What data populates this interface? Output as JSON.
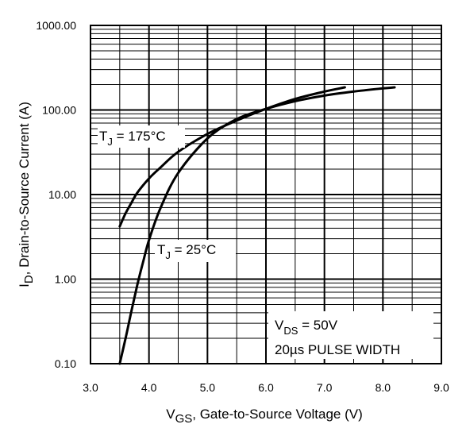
{
  "chart_data": {
    "type": "line",
    "title": "",
    "xlabel": {
      "main": "V",
      "sub": "GS",
      "rest": ", Gate-to-Source Voltage (V)"
    },
    "ylabel": {
      "main": "I",
      "sub": "D",
      "rest": ", Drain-to-Source Current  (A)"
    },
    "xlim": [
      3.0,
      9.0
    ],
    "ylim": [
      0.1,
      1000
    ],
    "y_scale": "log",
    "x_ticks": [
      "3.0",
      "4.0",
      "5.0",
      "6.0",
      "7.0",
      "8.0",
      "9.0"
    ],
    "y_ticks": [
      "0.10",
      "1.00",
      "10.00",
      "100.00",
      "1000.00"
    ],
    "grid": true,
    "series": [
      {
        "name": "TJ = 175°C",
        "x": [
          3.5,
          3.6,
          3.7,
          3.8,
          4.0,
          4.2,
          4.5,
          5.0,
          5.5,
          6.0,
          6.5,
          7.0,
          7.35
        ],
        "y": [
          4.2,
          6.0,
          8.0,
          10.5,
          15.5,
          21,
          32,
          52,
          75,
          103,
          135,
          165,
          185
        ]
      },
      {
        "name": "TJ = 25°C",
        "x": [
          3.5,
          3.6,
          3.7,
          3.8,
          3.9,
          4.0,
          4.2,
          4.5,
          5.0,
          5.5,
          6.0,
          6.5,
          7.0,
          7.5,
          8.0,
          8.2
        ],
        "y": [
          0.1,
          0.2,
          0.42,
          0.85,
          1.6,
          2.9,
          7.0,
          18,
          46,
          78,
          103,
          127,
          148,
          165,
          180,
          185
        ]
      }
    ],
    "annotations": [
      {
        "main": "T",
        "sub": "J",
        "rest": " = 175°C"
      },
      {
        "main": "T",
        "sub": "J",
        "rest": " = 25°C"
      },
      {
        "main": "V",
        "sub": "DS",
        "rest": " = 50V"
      },
      {
        "text": "20µs PULSE WIDTH"
      }
    ]
  }
}
